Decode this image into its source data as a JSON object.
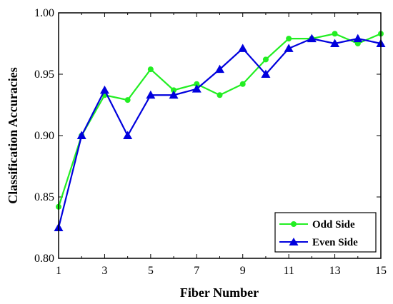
{
  "chart_data": {
    "type": "line",
    "xlabel": "Fiber Number",
    "ylabel": "Classification Accuracies",
    "xlim": [
      1,
      15
    ],
    "ylim": [
      0.8,
      1.0
    ],
    "xticks": [
      1,
      3,
      5,
      7,
      9,
      11,
      13,
      15
    ],
    "xtick_labels": [
      "1",
      "3",
      "5",
      "7",
      "9",
      "11",
      "13",
      "15"
    ],
    "yticks": [
      0.8,
      0.85,
      0.9,
      0.95,
      1.0
    ],
    "ytick_labels": [
      "0.80",
      "0.85",
      "0.90",
      "0.95",
      "1.00"
    ],
    "grid": false,
    "legend_position": "bottom-right",
    "x": [
      1,
      2,
      3,
      4,
      5,
      6,
      7,
      8,
      9,
      10,
      11,
      12,
      13,
      14,
      15
    ],
    "series": [
      {
        "name": "Odd Side",
        "color": "#22ee22",
        "marker": "circle",
        "values": [
          0.842,
          0.9,
          0.933,
          0.929,
          0.954,
          0.937,
          0.942,
          0.933,
          0.942,
          0.962,
          0.979,
          0.979,
          0.983,
          0.975,
          0.983
        ]
      },
      {
        "name": "Even Side",
        "color": "#0000dd",
        "marker": "triangle",
        "values": [
          0.825,
          0.9,
          0.937,
          0.9,
          0.933,
          0.933,
          0.938,
          0.954,
          0.971,
          0.95,
          0.971,
          0.979,
          0.975,
          0.979,
          0.975
        ]
      }
    ]
  }
}
